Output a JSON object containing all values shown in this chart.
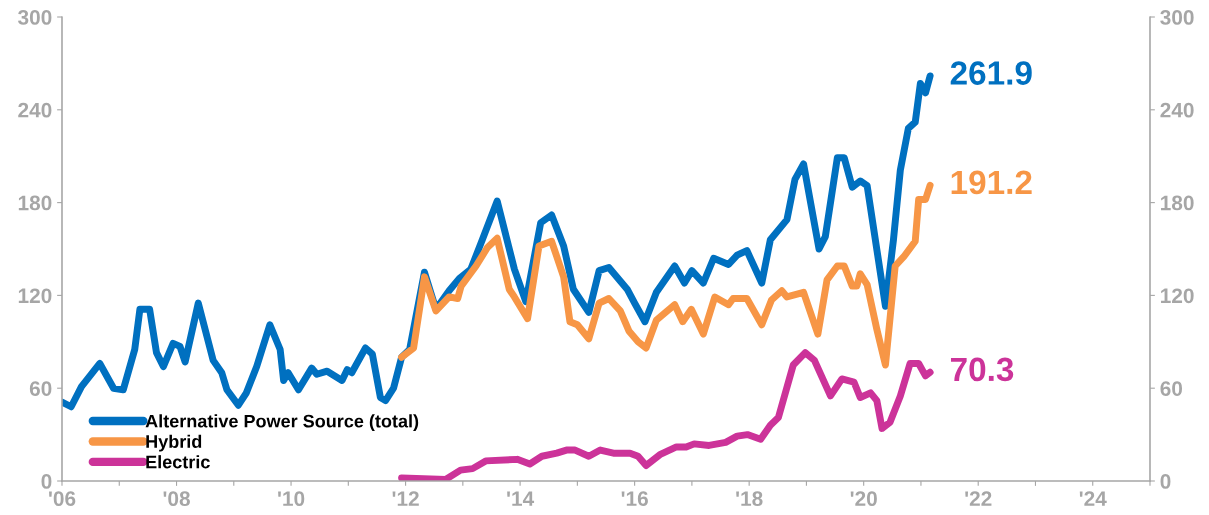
{
  "chart_data": {
    "type": "line",
    "xlim": [
      2006,
      2025
    ],
    "xticks": [
      {
        "value": 2006,
        "label": "'06"
      },
      {
        "value": 2007,
        "label": null
      },
      {
        "value": 2008,
        "label": "'08"
      },
      {
        "value": 2009,
        "label": null
      },
      {
        "value": 2010,
        "label": "'10"
      },
      {
        "value": 2011,
        "label": null
      },
      {
        "value": 2012,
        "label": "'12"
      },
      {
        "value": 2013,
        "label": null
      },
      {
        "value": 2014,
        "label": "'14"
      },
      {
        "value": 2015,
        "label": null
      },
      {
        "value": 2016,
        "label": "'16"
      },
      {
        "value": 2017,
        "label": null
      },
      {
        "value": 2018,
        "label": "'18"
      },
      {
        "value": 2019,
        "label": null
      },
      {
        "value": 2020,
        "label": "'20"
      },
      {
        "value": 2021,
        "label": null
      },
      {
        "value": 2022,
        "label": "'22"
      },
      {
        "value": 2023,
        "label": null
      },
      {
        "value": 2024,
        "label": "'24"
      },
      {
        "value": 2025,
        "label": null
      }
    ],
    "ylim": [
      0,
      300
    ],
    "yticks": [
      0,
      60,
      120,
      180,
      240,
      300
    ],
    "y2lim": [
      0,
      300
    ],
    "y2ticks": [
      0,
      60,
      120,
      180,
      240,
      300
    ],
    "grid": false,
    "legend": "bottom left",
    "marker": "none",
    "line_style": "solid",
    "series": [
      {
        "name": "Alternative Power Source (total)",
        "color": "#0070c0",
        "x": [
          2006.0,
          2006.16,
          2006.34,
          2006.66,
          2006.9,
          2007.07,
          2007.27,
          2007.36,
          2007.53,
          2007.65,
          2007.77,
          2007.94,
          2008.06,
          2008.15,
          2008.38,
          2008.64,
          2008.79,
          2008.88,
          2009.08,
          2009.22,
          2009.4,
          2009.63,
          2009.81,
          2009.87,
          2009.95,
          2010.13,
          2010.36,
          2010.45,
          2010.63,
          2010.89,
          2010.98,
          2011.06,
          2011.3,
          2011.42,
          2011.56,
          2011.65,
          2011.79,
          2011.93,
          2012.07,
          2012.33,
          2012.53,
          2012.76,
          2012.94,
          2013.14,
          2013.34,
          2013.6,
          2013.9,
          2014.1,
          2014.36,
          2014.55,
          2014.76,
          2014.93,
          2015.2,
          2015.38,
          2015.55,
          2015.87,
          2016.0,
          2016.18,
          2016.38,
          2016.7,
          2016.87,
          2017.0,
          2017.2,
          2017.38,
          2017.64,
          2017.79,
          2017.96,
          2018.22,
          2018.37,
          2018.66,
          2018.8,
          2018.95,
          2019.22,
          2019.33,
          2019.54,
          2019.66,
          2019.8,
          2019.94,
          2020.06,
          2020.38,
          2020.52,
          2020.64,
          2020.78,
          2020.9,
          2020.99,
          2021.08,
          2021.16
        ],
        "value_labels": [
          null,
          null,
          null,
          null,
          null,
          null,
          null,
          null,
          null,
          null,
          null,
          null,
          null,
          null,
          null,
          null,
          null,
          null,
          null,
          null,
          null,
          null,
          null,
          null,
          null,
          null,
          null,
          null,
          null,
          null,
          null,
          null,
          null,
          null,
          null,
          null,
          null,
          null,
          null,
          null,
          null,
          null,
          null,
          null,
          null,
          null,
          null,
          null,
          null,
          null,
          null,
          null,
          null,
          null,
          null,
          null,
          null,
          null,
          null,
          null,
          null,
          null,
          null,
          null,
          null,
          null,
          null,
          null,
          null,
          null,
          null,
          null,
          null,
          null,
          null,
          null,
          null,
          null,
          null,
          null,
          null,
          null,
          null,
          null,
          null,
          null,
          "261.9"
        ],
        "values": [
          51,
          48,
          61,
          76,
          60,
          59,
          85,
          111,
          111,
          83,
          74,
          89,
          87,
          77,
          115,
          78,
          70,
          59,
          49,
          57,
          74,
          101,
          85,
          65,
          70,
          59,
          73,
          69,
          71,
          65,
          72,
          70,
          86,
          82,
          54,
          52,
          60,
          80,
          85,
          135,
          111,
          123,
          131,
          137,
          156,
          181,
          137,
          116,
          167,
          172,
          152,
          124,
          109,
          136,
          138,
          124,
          115,
          103,
          122,
          139,
          128,
          136,
          128,
          144,
          140,
          146,
          149,
          128,
          156,
          169,
          195,
          205,
          150,
          158,
          209,
          209,
          190,
          194,
          191,
          113,
          156,
          201,
          228,
          232,
          257,
          251,
          261.9
        ]
      },
      {
        "name": "Hybrid",
        "color": "#f79646",
        "x": [
          2011.93,
          2012.14,
          2012.33,
          2012.53,
          2012.76,
          2012.91,
          2012.97,
          2013.23,
          2013.43,
          2013.6,
          2013.81,
          2013.9,
          2014.13,
          2014.33,
          2014.55,
          2014.76,
          2014.87,
          2015.0,
          2015.2,
          2015.38,
          2015.55,
          2015.75,
          2015.9,
          2016.06,
          2016.2,
          2016.38,
          2016.7,
          2016.84,
          2016.99,
          2017.2,
          2017.4,
          2017.64,
          2017.72,
          2017.96,
          2018.22,
          2018.39,
          2018.57,
          2018.66,
          2018.95,
          2019.2,
          2019.36,
          2019.54,
          2019.66,
          2019.8,
          2019.88,
          2019.94,
          2020.06,
          2020.23,
          2020.38,
          2020.55,
          2020.7,
          2020.9,
          2020.96,
          2021.08,
          2021.16
        ],
        "value_labels": [
          null,
          null,
          null,
          null,
          null,
          null,
          null,
          null,
          null,
          null,
          null,
          null,
          null,
          null,
          null,
          null,
          null,
          null,
          null,
          null,
          null,
          null,
          null,
          null,
          null,
          null,
          null,
          null,
          null,
          null,
          null,
          null,
          null,
          null,
          null,
          null,
          null,
          null,
          null,
          null,
          null,
          null,
          null,
          null,
          null,
          null,
          null,
          null,
          null,
          null,
          null,
          null,
          null,
          null,
          "191.2"
        ],
        "values": [
          80,
          86,
          132,
          110,
          119,
          118,
          126,
          139,
          151,
          157,
          124,
          119,
          105,
          152,
          155,
          132,
          103,
          101,
          92,
          115,
          118,
          110,
          97,
          90,
          86,
          104,
          114,
          103,
          111,
          95,
          119,
          114,
          118,
          118,
          101,
          117,
          123,
          119,
          122,
          95,
          130,
          139,
          139,
          126,
          126,
          134,
          127,
          98,
          75,
          139,
          145,
          155,
          182,
          182,
          191.2
        ]
      },
      {
        "name": "Electric",
        "color": "#cc3399",
        "x": [
          2011.93,
          2012.7,
          2012.96,
          2013.17,
          2013.4,
          2013.95,
          2014.17,
          2014.38,
          2014.64,
          2014.81,
          2014.96,
          2015.2,
          2015.4,
          2015.63,
          2015.92,
          2016.06,
          2016.2,
          2016.44,
          2016.73,
          2016.9,
          2017.04,
          2017.3,
          2017.59,
          2017.79,
          2017.97,
          2018.2,
          2018.37,
          2018.51,
          2018.77,
          2018.98,
          2019.14,
          2019.42,
          2019.62,
          2019.83,
          2019.94,
          2020.12,
          2020.23,
          2020.32,
          2020.46,
          2020.64,
          2020.81,
          2020.96,
          2021.08,
          2021.16
        ],
        "value_labels": [
          null,
          null,
          null,
          null,
          null,
          null,
          null,
          null,
          null,
          null,
          null,
          null,
          null,
          null,
          null,
          null,
          null,
          null,
          null,
          null,
          null,
          null,
          null,
          null,
          null,
          null,
          null,
          null,
          null,
          null,
          null,
          null,
          null,
          null,
          null,
          null,
          null,
          null,
          null,
          null,
          null,
          null,
          null,
          "70.3"
        ],
        "values": [
          2,
          1,
          7,
          8,
          13,
          14,
          11,
          16,
          18,
          20,
          20,
          16,
          20,
          18,
          18,
          16,
          10,
          17,
          22,
          22,
          24,
          23,
          25,
          29,
          30,
          27,
          36,
          41,
          75,
          83,
          78,
          55,
          66,
          64,
          54,
          57,
          52,
          34,
          38,
          55,
          76,
          76,
          68,
          70.3
        ]
      }
    ]
  }
}
